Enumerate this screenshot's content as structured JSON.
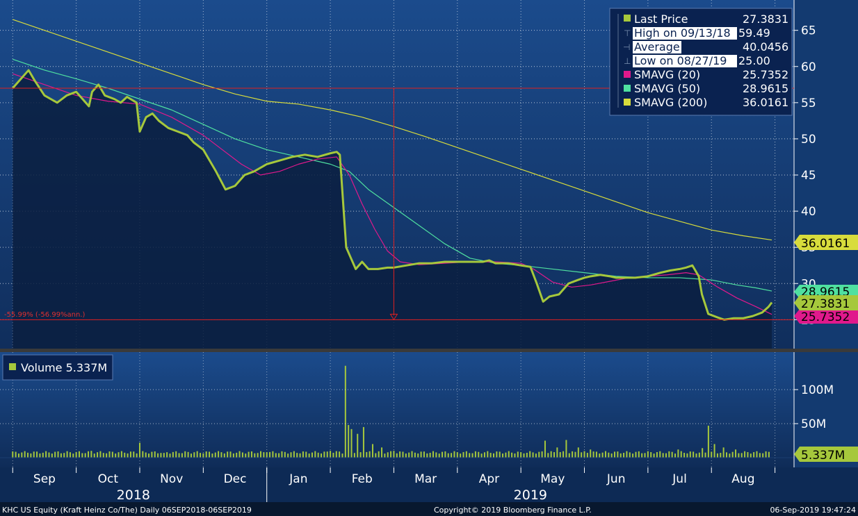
{
  "colors": {
    "price": "#a6c83c",
    "sma20": "#e0198c",
    "sma50": "#4fe0a0",
    "sma200": "#d8dc3c",
    "volume": "#a6c83c",
    "drawdown": "#e02020",
    "legend_bg": "#0a2250",
    "grid": "#ffffff"
  },
  "legend": {
    "last_price": {
      "label": "Last Price",
      "value": "27.3831"
    },
    "high": {
      "label": "High on 09/13/18",
      "value": "59.49"
    },
    "average": {
      "label": "Average",
      "value": "40.0456"
    },
    "low": {
      "label": "Low on 08/27/19",
      "value": "25.00"
    },
    "sma20": {
      "label": "SMAVG (20)",
      "value": "25.7352"
    },
    "sma50": {
      "label": "SMAVG (50)",
      "value": "28.9615"
    },
    "sma200": {
      "label": "SMAVG (200)",
      "value": "36.0161"
    }
  },
  "badges": {
    "sma200": "36.0161",
    "sma50": "28.9615",
    "last": "27.3831",
    "sma20": "25.7352",
    "volume": "5.337M"
  },
  "drawdown_label": "-55.99% (-56.99%ann.)",
  "volume_legend": {
    "label": "Volume 5.337M"
  },
  "footer": {
    "left": "KHC US Equity (Kraft Heinz Co/The)  Daily 06SEP2018-06SEP2019",
    "center": "Copyright© 2019 Bloomberg Finance L.P.",
    "right": "06-Sep-2019 19:47:24"
  },
  "chart_data": {
    "type": "line",
    "price_axis": {
      "ticks": [
        25,
        30,
        35,
        40,
        45,
        50,
        55,
        60,
        65
      ],
      "tick_labels": [
        "25",
        "30",
        "35",
        "40",
        "45",
        "50",
        "55",
        "60",
        "65"
      ],
      "ylim": [
        21,
        69
      ]
    },
    "volume_axis": {
      "ticks": [
        50,
        100
      ],
      "tick_labels": [
        "50M",
        "100M"
      ],
      "ylim": [
        0,
        150
      ],
      "unit": "M"
    },
    "x_months": [
      "Sep",
      "Oct",
      "Nov",
      "Dec",
      "Jan",
      "Feb",
      "Mar",
      "Apr",
      "May",
      "Jun",
      "Jul",
      "Aug"
    ],
    "x_years": [
      "2018",
      "2019"
    ],
    "month_ticks": [
      9.0,
      10.0,
      11.0,
      12.0,
      13.0,
      14.0,
      15.0,
      16.0,
      17.0,
      18.0,
      19.0,
      20.0,
      21.0
    ],
    "series": [
      {
        "name": "Last Price",
        "color": "#a6c83c",
        "points": [
          [
            9.0,
            57.0
          ],
          [
            9.15,
            58.5
          ],
          [
            9.25,
            59.49
          ],
          [
            9.35,
            58.0
          ],
          [
            9.5,
            56.0
          ],
          [
            9.7,
            55.0
          ],
          [
            9.85,
            56.0
          ],
          [
            10.0,
            56.5
          ],
          [
            10.1,
            55.5
          ],
          [
            10.2,
            54.5
          ],
          [
            10.25,
            56.5
          ],
          [
            10.35,
            57.5
          ],
          [
            10.45,
            56.0
          ],
          [
            10.6,
            55.5
          ],
          [
            10.7,
            55.0
          ],
          [
            10.8,
            55.8
          ],
          [
            10.95,
            55.0
          ],
          [
            11.0,
            51.0
          ],
          [
            11.1,
            53.0
          ],
          [
            11.2,
            53.5
          ],
          [
            11.3,
            52.5
          ],
          [
            11.45,
            51.5
          ],
          [
            11.6,
            51.0
          ],
          [
            11.75,
            50.5
          ],
          [
            11.85,
            49.5
          ],
          [
            12.0,
            48.5
          ],
          [
            12.1,
            47.0
          ],
          [
            12.2,
            45.5
          ],
          [
            12.35,
            43.0
          ],
          [
            12.5,
            43.5
          ],
          [
            12.65,
            45.0
          ],
          [
            12.8,
            45.5
          ],
          [
            13.0,
            46.5
          ],
          [
            13.2,
            47.0
          ],
          [
            13.4,
            47.5
          ],
          [
            13.6,
            47.8
          ],
          [
            13.8,
            47.5
          ],
          [
            14.0,
            48.0
          ],
          [
            14.1,
            48.2
          ],
          [
            14.15,
            47.8
          ],
          [
            14.25,
            35.0
          ],
          [
            14.4,
            32.0
          ],
          [
            14.5,
            33.0
          ],
          [
            14.6,
            32.0
          ],
          [
            14.75,
            32.0
          ],
          [
            14.9,
            32.2
          ],
          [
            15.0,
            32.2
          ],
          [
            15.2,
            32.5
          ],
          [
            15.4,
            32.8
          ],
          [
            15.6,
            32.8
          ],
          [
            15.8,
            33.0
          ],
          [
            16.0,
            33.0
          ],
          [
            16.2,
            33.0
          ],
          [
            16.4,
            33.0
          ],
          [
            16.5,
            33.2
          ],
          [
            16.6,
            32.8
          ],
          [
            16.8,
            32.8
          ],
          [
            17.0,
            32.5
          ],
          [
            17.15,
            32.3
          ],
          [
            17.25,
            30.0
          ],
          [
            17.35,
            27.5
          ],
          [
            17.45,
            28.2
          ],
          [
            17.6,
            28.5
          ],
          [
            17.75,
            30.0
          ],
          [
            17.9,
            30.5
          ],
          [
            18.0,
            30.8
          ],
          [
            18.1,
            31.0
          ],
          [
            18.25,
            31.2
          ],
          [
            18.4,
            31.0
          ],
          [
            18.5,
            30.8
          ],
          [
            18.65,
            30.8
          ],
          [
            18.8,
            30.8
          ],
          [
            19.0,
            31.0
          ],
          [
            19.2,
            31.5
          ],
          [
            19.35,
            31.8
          ],
          [
            19.5,
            32.0
          ],
          [
            19.6,
            32.2
          ],
          [
            19.7,
            32.5
          ],
          [
            19.8,
            31.0
          ],
          [
            19.85,
            28.5
          ],
          [
            19.95,
            25.8
          ],
          [
            20.1,
            25.3
          ],
          [
            20.2,
            25.0
          ],
          [
            20.35,
            25.2
          ],
          [
            20.5,
            25.2
          ],
          [
            20.65,
            25.5
          ],
          [
            20.8,
            26.0
          ],
          [
            20.9,
            26.8
          ],
          [
            20.95,
            27.3831
          ]
        ]
      },
      {
        "name": "SMAVG (20)",
        "color": "#e0198c",
        "points": [
          [
            9.0,
            59.0
          ],
          [
            9.5,
            57.5
          ],
          [
            10.0,
            56.0
          ],
          [
            10.5,
            55.2
          ],
          [
            11.0,
            54.8
          ],
          [
            11.5,
            53.0
          ],
          [
            12.0,
            50.5
          ],
          [
            12.3,
            48.5
          ],
          [
            12.6,
            46.5
          ],
          [
            12.9,
            45.0
          ],
          [
            13.2,
            45.5
          ],
          [
            13.5,
            46.5
          ],
          [
            13.8,
            47.2
          ],
          [
            14.1,
            47.5
          ],
          [
            14.3,
            45.0
          ],
          [
            14.5,
            41.0
          ],
          [
            14.7,
            37.5
          ],
          [
            14.9,
            34.5
          ],
          [
            15.1,
            33.0
          ],
          [
            15.4,
            32.6
          ],
          [
            15.8,
            32.8
          ],
          [
            16.2,
            33.0
          ],
          [
            16.6,
            33.0
          ],
          [
            17.0,
            32.8
          ],
          [
            17.2,
            32.0
          ],
          [
            17.5,
            30.2
          ],
          [
            17.8,
            29.5
          ],
          [
            18.1,
            29.8
          ],
          [
            18.4,
            30.3
          ],
          [
            18.7,
            30.8
          ],
          [
            19.0,
            31.0
          ],
          [
            19.3,
            31.2
          ],
          [
            19.6,
            31.5
          ],
          [
            19.8,
            31.2
          ],
          [
            20.1,
            29.5
          ],
          [
            20.4,
            28.0
          ],
          [
            20.7,
            26.8
          ],
          [
            20.95,
            25.7352
          ]
        ]
      },
      {
        "name": "SMAVG (50)",
        "color": "#4fe0a0",
        "points": [
          [
            9.0,
            61.0
          ],
          [
            9.5,
            59.5
          ],
          [
            10.0,
            58.3
          ],
          [
            10.5,
            57.0
          ],
          [
            11.0,
            55.5
          ],
          [
            11.5,
            54.0
          ],
          [
            12.0,
            52.0
          ],
          [
            12.5,
            50.0
          ],
          [
            13.0,
            48.5
          ],
          [
            13.5,
            47.5
          ],
          [
            14.0,
            46.5
          ],
          [
            14.3,
            45.5
          ],
          [
            14.6,
            43.0
          ],
          [
            15.0,
            40.5
          ],
          [
            15.4,
            38.0
          ],
          [
            15.8,
            35.5
          ],
          [
            16.2,
            33.5
          ],
          [
            16.6,
            32.8
          ],
          [
            17.0,
            32.5
          ],
          [
            17.5,
            32.0
          ],
          [
            18.0,
            31.5
          ],
          [
            18.5,
            31.0
          ],
          [
            19.0,
            30.8
          ],
          [
            19.5,
            30.8
          ],
          [
            20.0,
            30.5
          ],
          [
            20.4,
            29.8
          ],
          [
            20.7,
            29.4
          ],
          [
            20.95,
            28.9615
          ]
        ]
      },
      {
        "name": "SMAVG (200)",
        "color": "#d8dc3c",
        "points": [
          [
            9.0,
            66.5
          ],
          [
            9.5,
            65.0
          ],
          [
            10.0,
            63.5
          ],
          [
            10.5,
            62.0
          ],
          [
            11.0,
            60.5
          ],
          [
            11.5,
            59.0
          ],
          [
            12.0,
            57.5
          ],
          [
            12.5,
            56.2
          ],
          [
            13.0,
            55.2
          ],
          [
            13.5,
            54.8
          ],
          [
            14.0,
            54.0
          ],
          [
            14.5,
            53.0
          ],
          [
            15.0,
            51.7
          ],
          [
            15.5,
            50.3
          ],
          [
            16.0,
            48.8
          ],
          [
            16.5,
            47.3
          ],
          [
            17.0,
            45.8
          ],
          [
            17.5,
            44.3
          ],
          [
            18.0,
            42.8
          ],
          [
            18.5,
            41.3
          ],
          [
            19.0,
            39.8
          ],
          [
            19.5,
            38.6
          ],
          [
            20.0,
            37.4
          ],
          [
            20.5,
            36.6
          ],
          [
            20.95,
            36.0161
          ]
        ]
      }
    ],
    "volume_series": {
      "name": "Volume",
      "unit": "M",
      "base": 6,
      "spikes": [
        [
          10.25,
          10
        ],
        [
          10.7,
          8
        ],
        [
          11.0,
          22
        ],
        [
          11.4,
          7
        ],
        [
          12.3,
          8
        ],
        [
          13.0,
          8
        ],
        [
          14.0,
          10
        ],
        [
          14.15,
          9
        ],
        [
          14.25,
          135
        ],
        [
          14.3,
          48
        ],
        [
          14.35,
          42
        ],
        [
          14.45,
          35
        ],
        [
          14.55,
          45
        ],
        [
          14.7,
          20
        ],
        [
          14.8,
          15
        ],
        [
          15.0,
          10
        ],
        [
          16.0,
          8
        ],
        [
          17.0,
          8
        ],
        [
          17.4,
          25
        ],
        [
          17.6,
          15
        ],
        [
          17.75,
          26
        ],
        [
          17.9,
          15
        ],
        [
          18.1,
          12
        ],
        [
          19.5,
          12
        ],
        [
          19.85,
          14
        ],
        [
          19.95,
          47
        ],
        [
          20.05,
          20
        ],
        [
          20.2,
          15
        ],
        [
          20.4,
          12
        ],
        [
          20.95,
          5.337
        ]
      ]
    },
    "drawdown": {
      "from": [
        9.25,
        57.0
      ],
      "to": [
        15.0,
        25.0
      ]
    }
  }
}
